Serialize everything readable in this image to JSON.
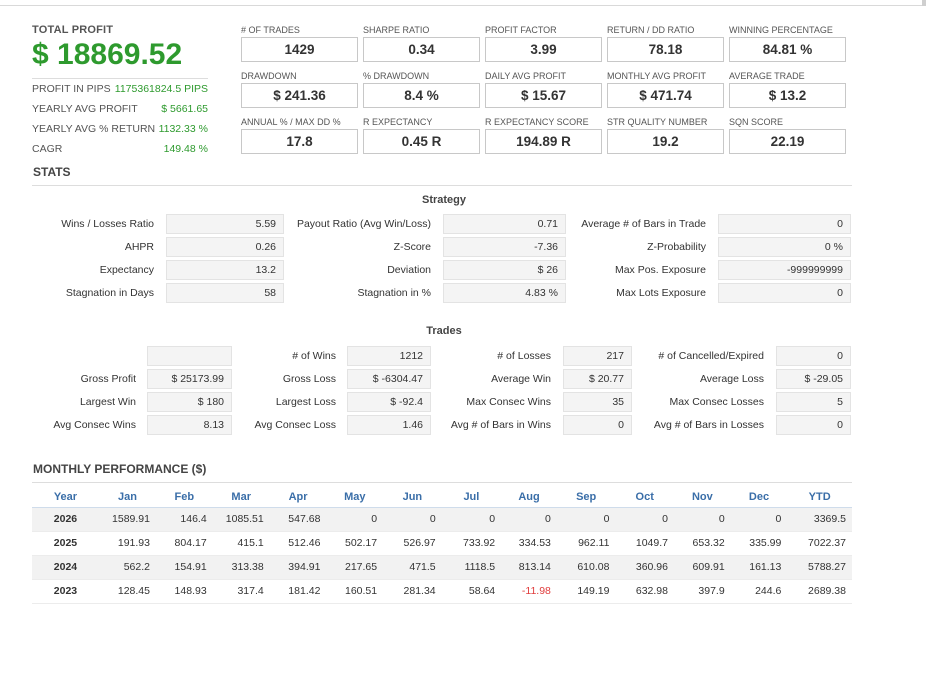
{
  "summary": {
    "total_label": "TOTAL PROFIT",
    "total_value": "$ 18869.52",
    "rows": [
      {
        "label": "PROFIT IN PIPS",
        "value": "1175361824.5 PIPS"
      },
      {
        "label": "YEARLY AVG PROFIT",
        "value": "$ 5661.65"
      },
      {
        "label": "YEARLY AVG % RETURN",
        "value": "1132.33 %"
      },
      {
        "label": "CAGR",
        "value": "149.48 %"
      }
    ]
  },
  "metrics": [
    {
      "label": "# OF TRADES",
      "value": "1429"
    },
    {
      "label": "SHARPE RATIO",
      "value": "0.34"
    },
    {
      "label": "PROFIT FACTOR",
      "value": "3.99"
    },
    {
      "label": "RETURN / DD RATIO",
      "value": "78.18"
    },
    {
      "label": "WINNING PERCENTAGE",
      "value": "84.81 %"
    },
    {
      "label": "DRAWDOWN",
      "value": "$ 241.36"
    },
    {
      "label": "% DRAWDOWN",
      "value": "8.4 %"
    },
    {
      "label": "DAILY AVG PROFIT",
      "value": "$ 15.67"
    },
    {
      "label": "MONTHLY AVG PROFIT",
      "value": "$ 471.74"
    },
    {
      "label": "AVERAGE TRADE",
      "value": "$ 13.2"
    },
    {
      "label": "ANNUAL % / MAX DD %",
      "value": "17.8"
    },
    {
      "label": "R EXPECTANCY",
      "value": "0.45 R"
    },
    {
      "label": "R EXPECTANCY SCORE",
      "value": "194.89 R"
    },
    {
      "label": "STR QUALITY NUMBER",
      "value": "19.2"
    },
    {
      "label": "SQN SCORE",
      "value": "22.19"
    }
  ],
  "stats": {
    "title": "STATS",
    "strategy_title": "Strategy",
    "strategy": [
      [
        {
          "label": "Wins / Losses Ratio",
          "value": "5.59"
        },
        {
          "label": "Payout Ratio (Avg Win/Loss)",
          "value": "0.71"
        },
        {
          "label": "Average # of Bars in Trade",
          "value": "0"
        }
      ],
      [
        {
          "label": "AHPR",
          "value": "0.26"
        },
        {
          "label": "Z-Score",
          "value": "-7.36"
        },
        {
          "label": "Z-Probability",
          "value": "0 %"
        }
      ],
      [
        {
          "label": "Expectancy",
          "value": "13.2"
        },
        {
          "label": "Deviation",
          "value": "$ 26"
        },
        {
          "label": "Max Pos. Exposure",
          "value": "-999999999"
        }
      ],
      [
        {
          "label": "Stagnation in Days",
          "value": "58"
        },
        {
          "label": "Stagnation in %",
          "value": "4.83 %"
        },
        {
          "label": "Max Lots Exposure",
          "value": "0"
        }
      ]
    ],
    "trades_title": "Trades",
    "trades": [
      [
        {
          "label": "",
          "value": ""
        },
        {
          "label": "# of Wins",
          "value": "1212"
        },
        {
          "label": "# of Losses",
          "value": "217"
        },
        {
          "label": "# of Cancelled/Expired",
          "value": "0"
        }
      ],
      [
        {
          "label": "Gross Profit",
          "value": "$ 25173.99"
        },
        {
          "label": "Gross Loss",
          "value": "$ -6304.47"
        },
        {
          "label": "Average Win",
          "value": "$ 20.77"
        },
        {
          "label": "Average Loss",
          "value": "$ -29.05"
        }
      ],
      [
        {
          "label": "Largest Win",
          "value": "$ 180"
        },
        {
          "label": "Largest Loss",
          "value": "$ -92.4"
        },
        {
          "label": "Max Consec Wins",
          "value": "35"
        },
        {
          "label": "Max Consec Losses",
          "value": "5"
        }
      ],
      [
        {
          "label": "Avg Consec Wins",
          "value": "8.13"
        },
        {
          "label": "Avg Consec Loss",
          "value": "1.46"
        },
        {
          "label": "Avg # of Bars in Wins",
          "value": "0"
        },
        {
          "label": "Avg # of Bars in Losses",
          "value": "0"
        }
      ]
    ]
  },
  "monthly": {
    "title": "MONTHLY PERFORMANCE ($)",
    "headers": [
      "Year",
      "Jan",
      "Feb",
      "Mar",
      "Apr",
      "May",
      "Jun",
      "Jul",
      "Aug",
      "Sep",
      "Oct",
      "Nov",
      "Dec",
      "YTD"
    ],
    "rows": [
      [
        "2026",
        "1589.91",
        "146.4",
        "1085.51",
        "547.68",
        "0",
        "0",
        "0",
        "0",
        "0",
        "0",
        "0",
        "0",
        "3369.5"
      ],
      [
        "2025",
        "191.93",
        "804.17",
        "415.1",
        "512.46",
        "502.17",
        "526.97",
        "733.92",
        "334.53",
        "962.11",
        "1049.7",
        "653.32",
        "335.99",
        "7022.37"
      ],
      [
        "2024",
        "562.2",
        "154.91",
        "313.38",
        "394.91",
        "217.65",
        "471.5",
        "1118.5",
        "813.14",
        "610.08",
        "360.96",
        "609.91",
        "161.13",
        "5788.27"
      ],
      [
        "2023",
        "128.45",
        "148.93",
        "317.4",
        "181.42",
        "160.51",
        "281.34",
        "58.64",
        "-11.98",
        "149.19",
        "632.98",
        "397.9",
        "244.6",
        "2689.38"
      ]
    ]
  },
  "colors": {
    "profit_green": "#2e9a2e",
    "header_blue": "#3a6ea8",
    "negative_red": "#e03c3c"
  }
}
